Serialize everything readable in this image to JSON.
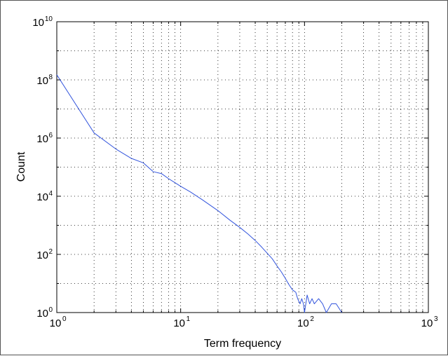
{
  "chart_data": {
    "type": "line",
    "xscale": "log",
    "yscale": "log",
    "xlabel": "Term frequency",
    "ylabel": "Count",
    "xlim": [
      1,
      1000
    ],
    "ylim": [
      1,
      10000000000
    ],
    "grid": true,
    "x_ticks": [
      {
        "base": "10",
        "exp": "0"
      },
      {
        "base": "10",
        "exp": "1"
      },
      {
        "base": "10",
        "exp": "2"
      },
      {
        "base": "10",
        "exp": "3"
      }
    ],
    "y_ticks": [
      {
        "base": "10",
        "exp": "0"
      },
      {
        "base": "10",
        "exp": "2"
      },
      {
        "base": "10",
        "exp": "4"
      },
      {
        "base": "10",
        "exp": "6"
      },
      {
        "base": "10",
        "exp": "8"
      },
      {
        "base": "10",
        "exp": "10"
      }
    ],
    "series": [
      {
        "color": "#3355dd",
        "x": [
          1,
          2,
          3,
          4,
          5,
          6,
          7,
          8,
          10,
          12,
          15,
          20,
          25,
          30,
          35,
          40,
          45,
          50,
          55,
          60,
          65,
          70,
          75,
          80,
          85,
          88,
          92,
          95,
          98,
          100,
          105,
          110,
          115,
          120,
          130,
          140,
          150,
          165,
          180,
          200
        ],
        "y": [
          150000000,
          1500000,
          420000,
          200000,
          140000,
          70000,
          60000,
          40000,
          22000,
          14000,
          7500,
          3200,
          1500,
          850,
          500,
          300,
          180,
          110,
          70,
          40,
          25,
          15,
          9,
          6,
          5,
          3,
          2,
          3,
          2,
          1,
          4,
          2,
          3,
          2,
          3,
          2,
          1,
          2,
          2,
          1
        ]
      }
    ]
  }
}
